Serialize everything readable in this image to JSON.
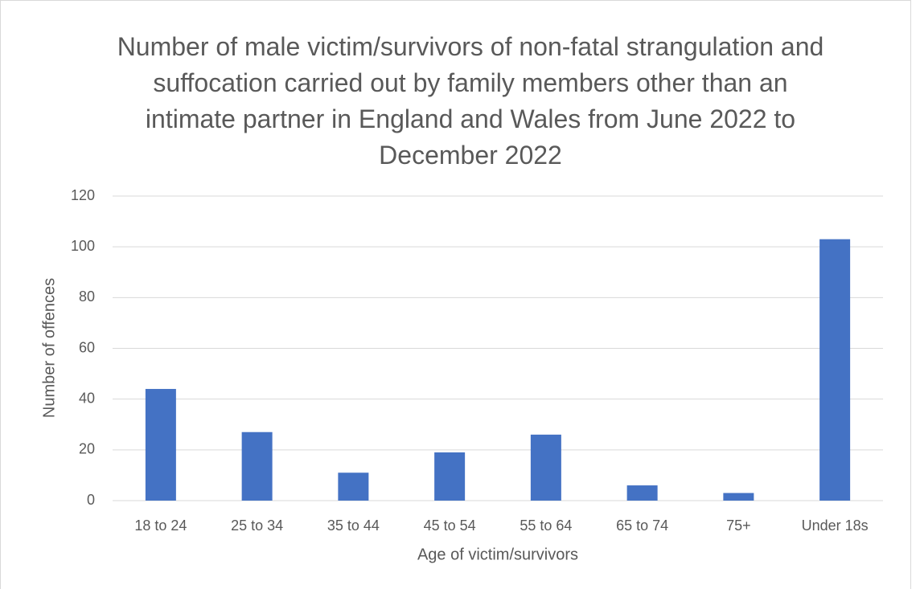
{
  "chart_data": {
    "type": "bar",
    "title": "Number of male victim/survivors of non-fatal strangulation and suffocation carried out by family members other than an intimate partner in England and Wales from June 2022 to December 2022",
    "x_label": "Age of victim/survivors",
    "y_label": "Number of offences",
    "categories": [
      "18 to 24",
      "25 to 34",
      "35 to 44",
      "45 to 54",
      "55 to 64",
      "65 to 74",
      "75+",
      "Under 18s"
    ],
    "values": [
      44,
      27,
      11,
      19,
      26,
      6,
      3,
      103
    ],
    "color": "#4472c4",
    "ylim": [
      0,
      120
    ],
    "yticks": [
      0,
      20,
      40,
      60,
      80,
      100,
      120
    ],
    "grid": true
  }
}
